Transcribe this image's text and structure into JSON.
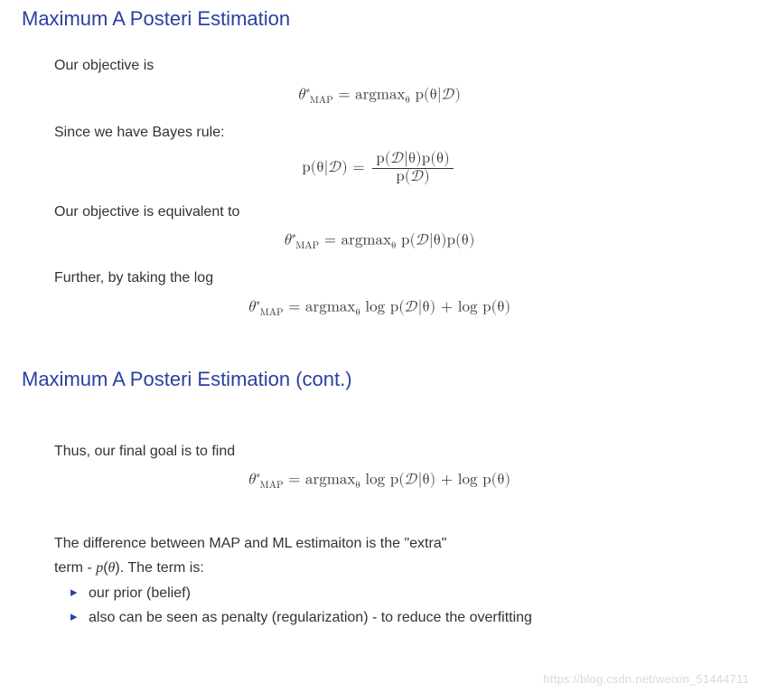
{
  "colors": {
    "heading": "#2a3fa2",
    "text": "#333333",
    "bullet": "#2a3fa2",
    "watermark": "#d9d9d9",
    "background": "#ffffff"
  },
  "typography": {
    "heading_fontsize": 22,
    "body_fontsize": 16,
    "eq_fontsize": 17,
    "watermark_fontsize": 13
  },
  "section1": {
    "title": "Maximum A Posteri Estimation",
    "p1": "Our objective is",
    "p2": "Since we have Bayes rule:",
    "p3": "Our objective is equivalent to",
    "p4": "Further, by taking the log",
    "eq1": {
      "lhs_var": "θ",
      "lhs_sup": "∗",
      "lhs_sub": "MAP",
      "op": "argmax",
      "op_sub": "θ",
      "rhs": "p(θ|𝒟)"
    },
    "eq2": {
      "lhs": "p(θ|𝒟)",
      "num": "p(𝒟|θ)p(θ)",
      "den": "p(𝒟)"
    },
    "eq3": {
      "lhs_var": "θ",
      "lhs_sup": "∗",
      "lhs_sub": "MAP",
      "op": "argmax",
      "op_sub": "θ",
      "rhs": "p(𝒟|θ)p(θ)"
    },
    "eq4": {
      "lhs_var": "θ",
      "lhs_sup": "∗",
      "lhs_sub": "MAP",
      "op": "argmax",
      "op_sub": "θ",
      "rhs": "log p(𝒟|θ) + log p(θ)"
    }
  },
  "section2": {
    "title": "Maximum A Posteri Estimation (cont.)",
    "p1": "Thus, our final goal is to find",
    "eq1": {
      "lhs_var": "θ",
      "lhs_sup": "∗",
      "lhs_sub": "MAP",
      "op": "argmax",
      "op_sub": "θ",
      "rhs": "log p(𝒟|θ) + log p(θ)"
    },
    "p2a": "The difference between MAP and ML estimaiton is the \"extra\"",
    "p2b": "term - p(θ). The term is:",
    "bullets": [
      "our prior (belief)",
      "also can be seen as penalty (regularization) - to reduce the overfitting"
    ]
  },
  "watermark": "https://blog.csdn.net/weixin_51444711"
}
